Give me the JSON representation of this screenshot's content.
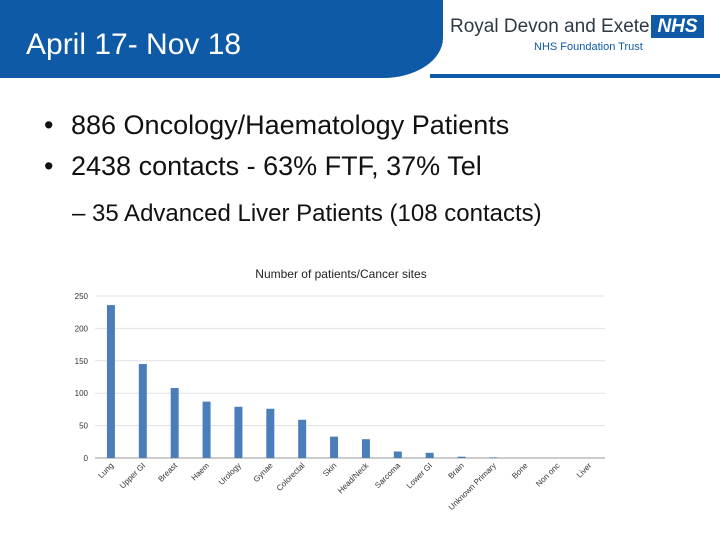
{
  "header": {
    "title": "April 17- Nov 18",
    "logo_name": "Royal Devon and Exeter",
    "logo_sub": "NHS Foundation Trust",
    "logo_badge": "NHS",
    "brand_color": "#0e5aa7"
  },
  "bullets": [
    {
      "marker": "•",
      "text": "886 Oncology/Haematology Patients"
    },
    {
      "marker": "•",
      "text": "2438 contacts - 63% FTF, 37% Tel"
    }
  ],
  "sub_bullet": "– 35 Advanced Liver Patients (108 contacts)",
  "chart_data": {
    "type": "bar",
    "title": "Number of patients/Cancer sites",
    "xlabel": "",
    "ylabel": "",
    "ylim": [
      0,
      250
    ],
    "yticks": [
      0,
      50,
      100,
      150,
      200,
      250
    ],
    "grid": true,
    "categories": [
      "Lung",
      "Upper GI",
      "Breast",
      "Haem",
      "Urology",
      "Gynae",
      "Colorectal",
      "Skin",
      "Head/Neck",
      "Sarcoma",
      "Lower GI",
      "Brain",
      "Unknown Primary",
      "Bone",
      "Non onc",
      "Liver"
    ],
    "values": [
      236,
      145,
      108,
      87,
      79,
      76,
      59,
      33,
      29,
      10,
      8,
      2,
      1,
      0,
      0,
      0
    ],
    "bar_color": "#4a7ebb"
  }
}
